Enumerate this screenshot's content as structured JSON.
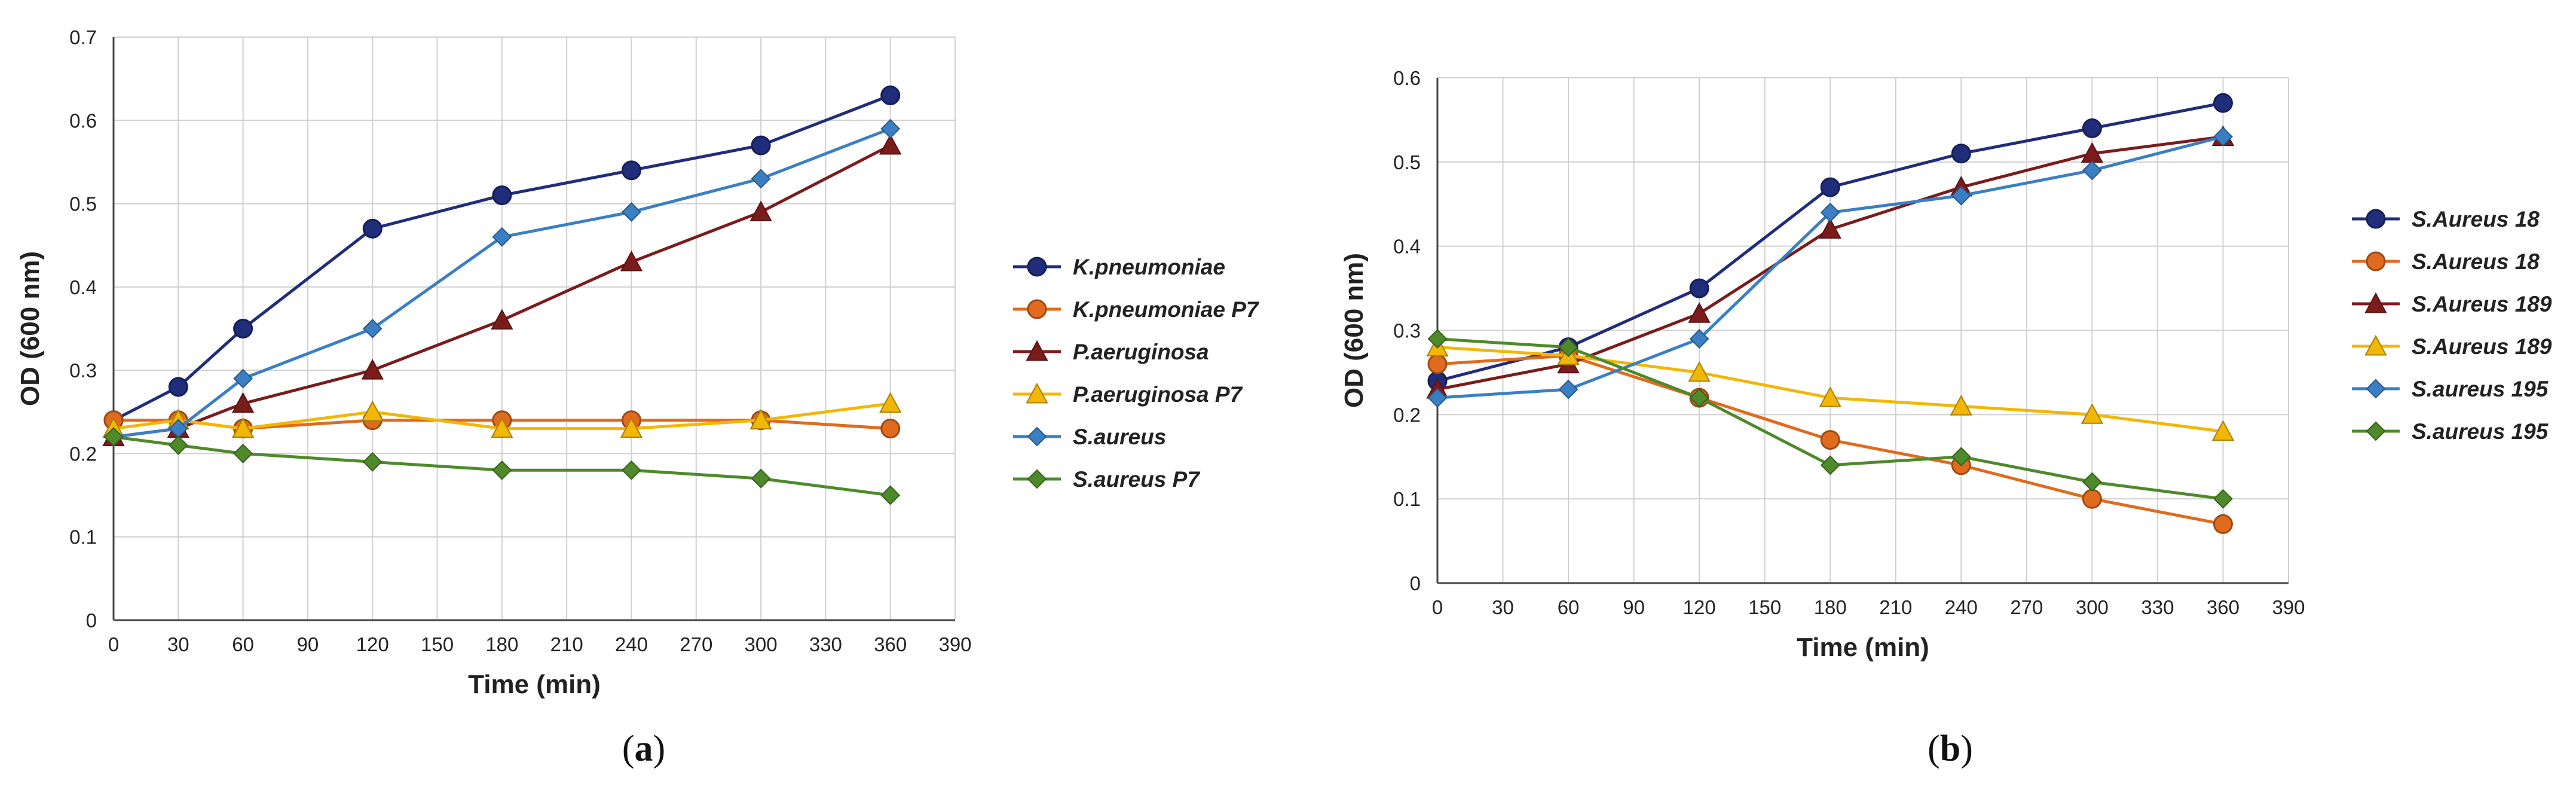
{
  "chart_data": [
    {
      "type": "line",
      "panel_label": "a",
      "title": "",
      "xlabel": "Time (min)",
      "ylabel": "OD (600 nm)",
      "xlim": [
        0,
        390
      ],
      "ylim": [
        0,
        0.7
      ],
      "xticks": [
        0,
        30,
        60,
        90,
        120,
        150,
        180,
        210,
        240,
        270,
        300,
        330,
        360,
        390
      ],
      "yticks": [
        0,
        0.1,
        0.2,
        0.3,
        0.4,
        0.5,
        0.6,
        0.7
      ],
      "x": [
        0,
        30,
        60,
        120,
        180,
        240,
        300,
        360
      ],
      "grid": true,
      "legend_position": "right",
      "series": [
        {
          "name": "K.pneumoniae",
          "color": "#1f2d7a",
          "marker": "circle",
          "values": [
            0.24,
            0.28,
            0.35,
            0.47,
            0.51,
            0.54,
            0.57,
            0.63
          ]
        },
        {
          "name": "K.pneumoniae P7",
          "color": "#e06a1e",
          "marker": "circle",
          "values": [
            0.24,
            0.24,
            0.23,
            0.24,
            0.24,
            0.24,
            0.24,
            0.23
          ]
        },
        {
          "name": "P.aeruginosa",
          "color": "#7b1c1c",
          "marker": "triangle",
          "values": [
            0.22,
            0.23,
            0.26,
            0.3,
            0.36,
            0.43,
            0.49,
            0.57
          ]
        },
        {
          "name": "P.aeruginosa P7",
          "color": "#f2b705",
          "marker": "triangle",
          "values": [
            0.23,
            0.24,
            0.23,
            0.25,
            0.23,
            0.23,
            0.24,
            0.26
          ]
        },
        {
          "name": "S.aureus",
          "color": "#3a7fc4",
          "marker": "diamond",
          "values": [
            0.22,
            0.23,
            0.29,
            0.35,
            0.46,
            0.49,
            0.53,
            0.59
          ]
        },
        {
          "name": "S.aureus P7",
          "color": "#4e8a2a",
          "marker": "diamond",
          "values": [
            0.22,
            0.21,
            0.2,
            0.19,
            0.18,
            0.18,
            0.17,
            0.15
          ]
        }
      ]
    },
    {
      "type": "line",
      "panel_label": "b",
      "title": "",
      "xlabel": "Time (min)",
      "ylabel": "OD (600 nm)",
      "xlim": [
        0,
        390
      ],
      "ylim": [
        0,
        0.6
      ],
      "xticks": [
        0,
        30,
        60,
        90,
        120,
        150,
        180,
        210,
        240,
        270,
        300,
        330,
        360,
        390
      ],
      "yticks": [
        0,
        0.1,
        0.2,
        0.3,
        0.4,
        0.5,
        0.6
      ],
      "x": [
        0,
        60,
        120,
        180,
        240,
        300,
        360
      ],
      "grid": true,
      "legend_position": "right",
      "series": [
        {
          "name": "S.Aureus 18",
          "color": "#1f2d7a",
          "marker": "circle",
          "values": [
            0.24,
            0.28,
            0.35,
            0.47,
            0.51,
            0.54,
            0.57
          ]
        },
        {
          "name": "S.Aureus 18",
          "color": "#e06a1e",
          "marker": "circle",
          "values": [
            0.26,
            0.27,
            0.22,
            0.17,
            0.14,
            0.1,
            0.07
          ]
        },
        {
          "name": "S.Aureus 189",
          "color": "#7b1c1c",
          "marker": "triangle",
          "values": [
            0.23,
            0.26,
            0.32,
            0.42,
            0.47,
            0.51,
            0.53
          ]
        },
        {
          "name": "S.Aureus 189",
          "color": "#f2b705",
          "marker": "triangle",
          "values": [
            0.28,
            0.27,
            0.25,
            0.22,
            0.21,
            0.2,
            0.18
          ]
        },
        {
          "name": "S.aureus 195",
          "color": "#3a7fc4",
          "marker": "diamond",
          "values": [
            0.22,
            0.23,
            0.29,
            0.44,
            0.46,
            0.49,
            0.53
          ]
        },
        {
          "name": "S.aureus 195",
          "color": "#4e8a2a",
          "marker": "diamond",
          "values": [
            0.29,
            0.28,
            0.22,
            0.14,
            0.15,
            0.12,
            0.1
          ]
        }
      ]
    }
  ]
}
